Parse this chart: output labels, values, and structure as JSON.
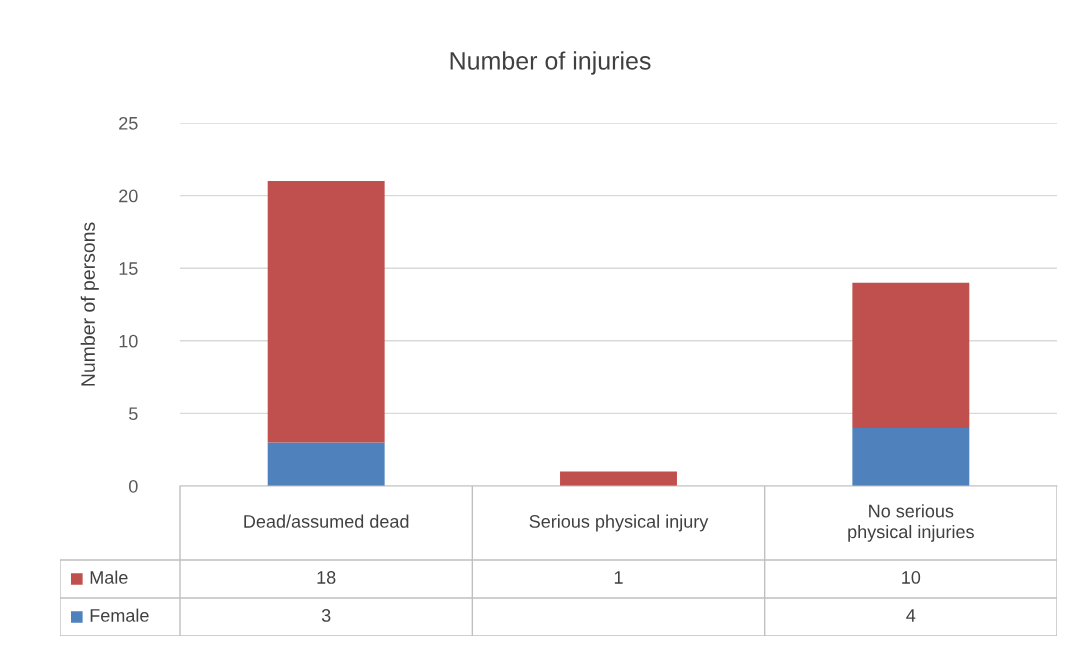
{
  "chart_data": {
    "type": "bar",
    "title": "Number of injuries",
    "ylabel": "Number of persons",
    "categories": [
      "Dead/assumed dead",
      "Serious physical injury",
      "No serious physical injuries"
    ],
    "stacked": true,
    "legend": "bottom",
    "data_labels": true,
    "grid": "y",
    "ylim": [
      0,
      25
    ],
    "yticks": [
      0,
      5,
      10,
      15,
      20,
      25
    ],
    "series": [
      {
        "name": "Female",
        "color": "#4f81bd",
        "values": [
          3,
          null,
          4
        ]
      },
      {
        "name": "Male",
        "color": "#c0504d",
        "values": [
          18,
          1,
          10
        ]
      }
    ]
  }
}
